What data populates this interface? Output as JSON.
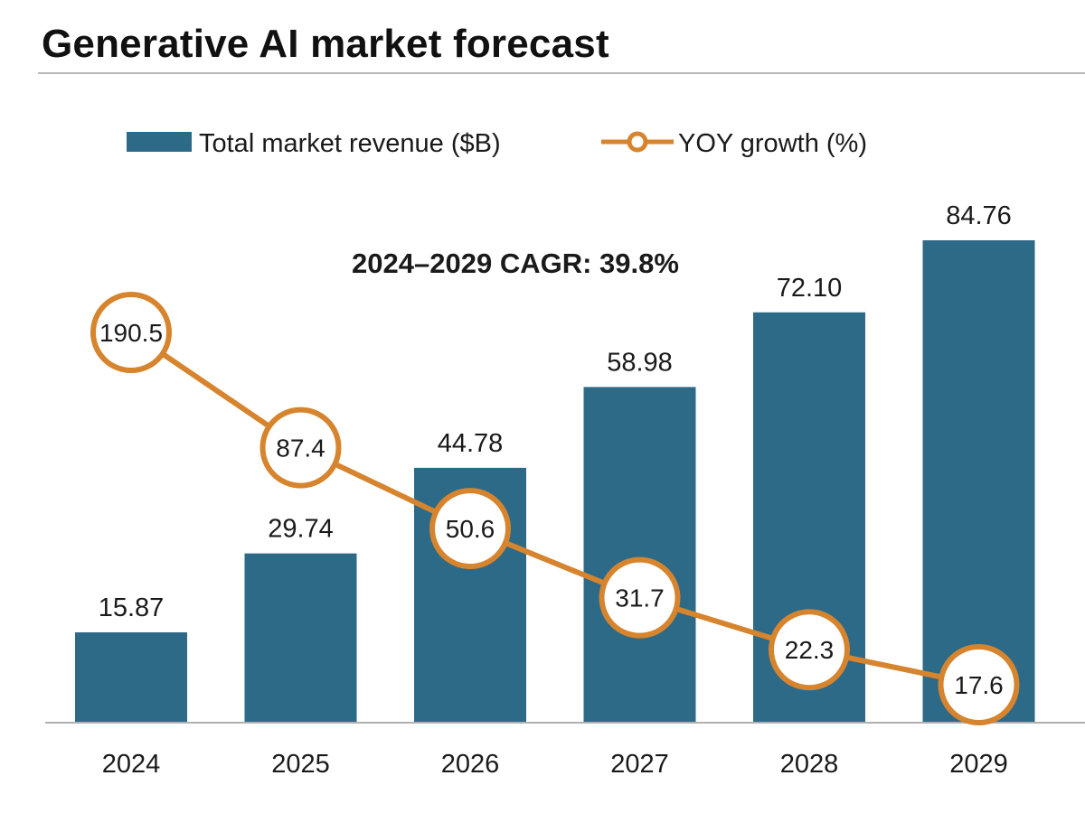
{
  "chart_data": {
    "type": "bar",
    "title": "Generative AI market forecast",
    "annotation": "2024–2029 CAGR: 39.8%",
    "categories": [
      "2024",
      "2025",
      "2026",
      "2027",
      "2028",
      "2029"
    ],
    "series": [
      {
        "name": "Total market revenue ($B)",
        "type": "bar",
        "color": "#2d6a88",
        "values": [
          15.87,
          29.74,
          44.78,
          58.98,
          72.1,
          84.76
        ],
        "labels": [
          "15.87",
          "29.74",
          "44.78",
          "58.98",
          "72.10",
          "84.76"
        ]
      },
      {
        "name": "YOY growth (%)",
        "type": "line",
        "marker": "circle",
        "color": "#d6842d",
        "values": [
          190.5,
          87.4,
          50.6,
          31.7,
          22.3,
          17.6
        ],
        "labels": [
          "190.5",
          "87.4",
          "50.6",
          "31.7",
          "22.3",
          "17.6"
        ]
      }
    ],
    "legend": {
      "position": "top",
      "items": [
        "Total market revenue ($B)",
        "YOY growth (%)"
      ]
    },
    "xlabel": "",
    "ylabel": "",
    "ylim": [
      0,
      100
    ],
    "ylim_secondary": [
      0,
      240
    ],
    "grid": false
  }
}
